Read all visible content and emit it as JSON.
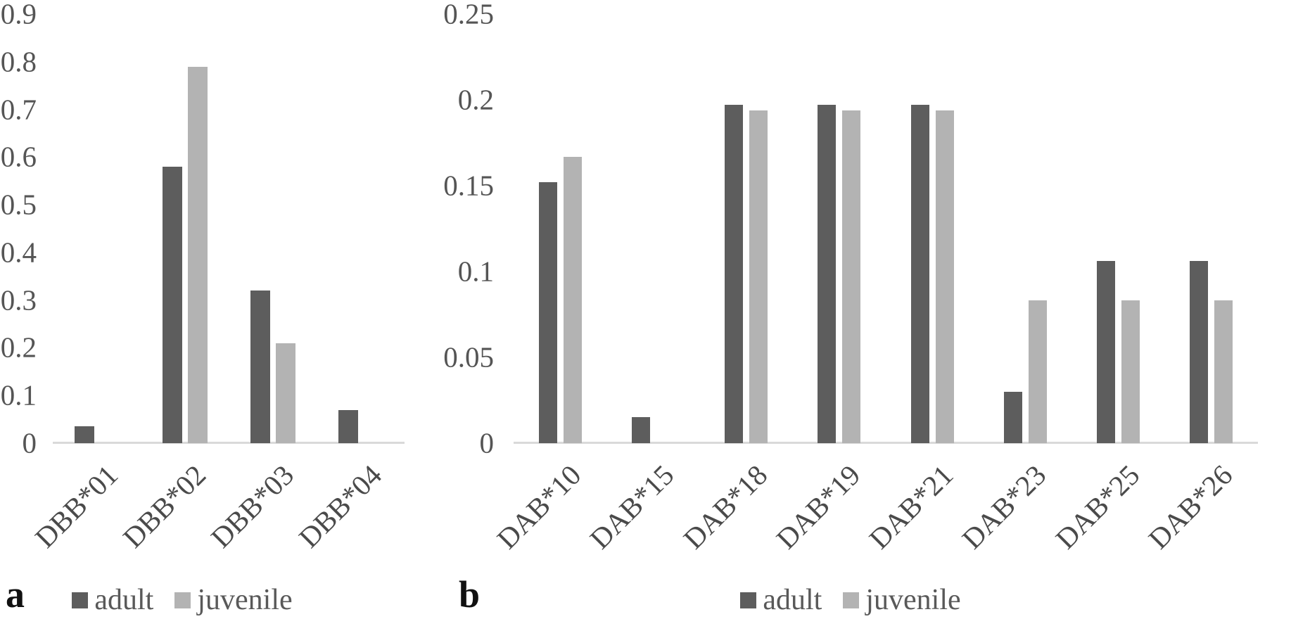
{
  "figure": {
    "background": "#ffffff",
    "description": "Two-panel grouped bar chart of allele frequencies for adult vs juvenile"
  },
  "colors": {
    "adult": "#5d5d5d",
    "juvenile": "#b3b3b3",
    "axis_line": "#d9d9d9",
    "tick_text": "#555555"
  },
  "chart_data": [
    {
      "type": "bar",
      "panel_label": "a",
      "title": "",
      "xlabel": "",
      "ylabel": "",
      "categories": [
        "DBB*01",
        "DBB*02",
        "DBB*03",
        "DBB*04"
      ],
      "series": [
        {
          "name": "adult",
          "color": "#5d5d5d",
          "values": [
            0.035,
            0.58,
            0.32,
            0.07
          ]
        },
        {
          "name": "juvenile",
          "color": "#b3b3b3",
          "values": [
            0,
            0.79,
            0.21,
            0
          ]
        }
      ],
      "ylim": [
        0,
        0.9
      ],
      "yticks": [
        0,
        0.1,
        0.2,
        0.3,
        0.4,
        0.5,
        0.6,
        0.7,
        0.8,
        0.9
      ],
      "ytick_labels": [
        "0",
        "0.1",
        "0.2",
        "0.3",
        "0.4",
        "0.5",
        "0.6",
        "0.7",
        "0.8",
        "0.9"
      ],
      "grid": false,
      "legend_position": "bottom",
      "legend": [
        "adult",
        "juvenile"
      ]
    },
    {
      "type": "bar",
      "panel_label": "b",
      "title": "",
      "xlabel": "",
      "ylabel": "",
      "categories": [
        "DAB*10",
        "DAB*15",
        "DAB*18",
        "DAB*19",
        "DAB*21",
        "DAB*23",
        "DAB*25",
        "DAB*26"
      ],
      "series": [
        {
          "name": "adult",
          "color": "#5d5d5d",
          "values": [
            0.152,
            0.015,
            0.197,
            0.197,
            0.197,
            0.03,
            0.106,
            0.106
          ]
        },
        {
          "name": "juvenile",
          "color": "#b3b3b3",
          "values": [
            0.167,
            0,
            0.194,
            0.194,
            0.194,
            0.083,
            0.083,
            0.083
          ]
        }
      ],
      "ylim": [
        0,
        0.25
      ],
      "yticks": [
        0,
        0.05,
        0.1,
        0.15,
        0.2,
        0.25
      ],
      "ytick_labels": [
        "0",
        "0.05",
        "0.1",
        "0.15",
        "0.2",
        "0.25"
      ],
      "grid": false,
      "legend_position": "bottom",
      "legend": [
        "adult",
        "juvenile"
      ]
    }
  ]
}
